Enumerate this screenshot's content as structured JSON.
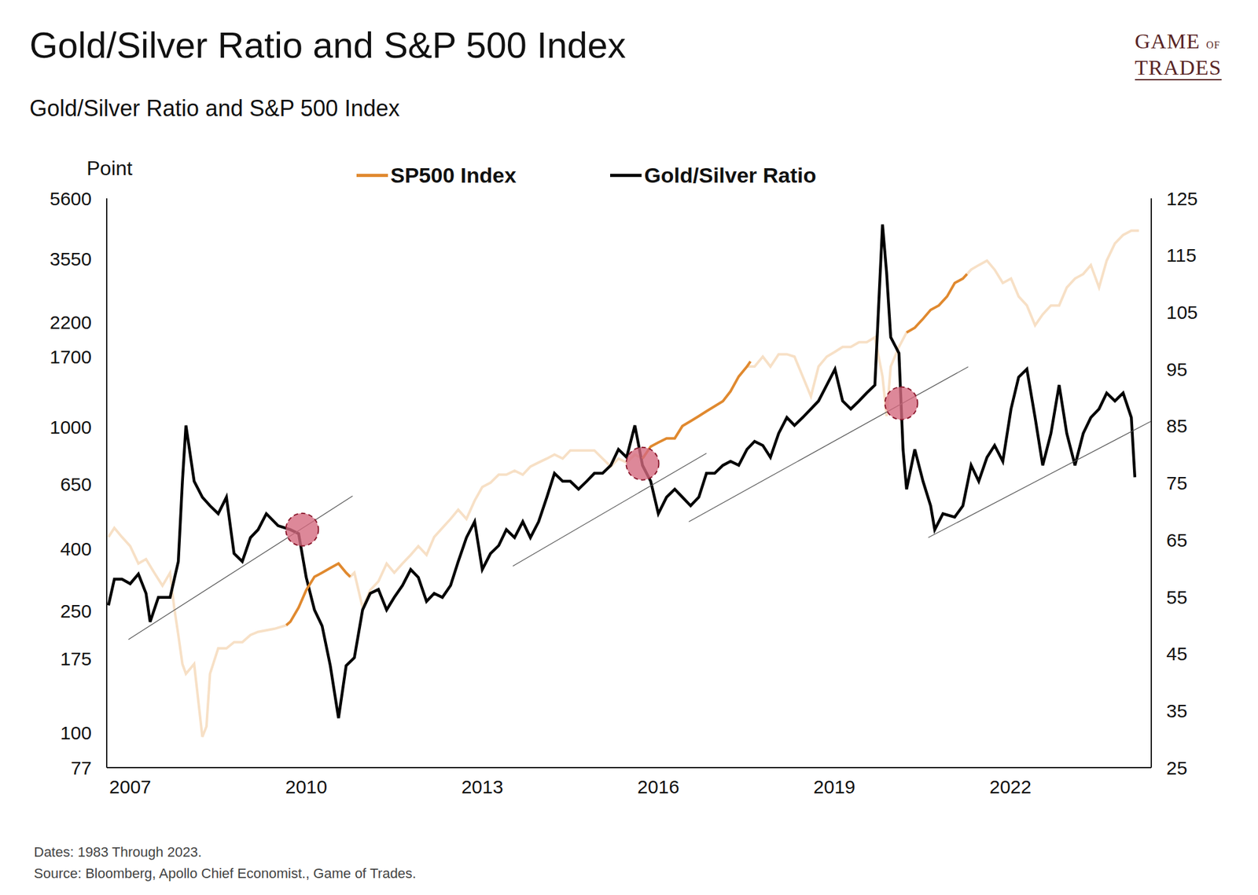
{
  "chart_data": {
    "type": "line",
    "title": "Gold/Silver Ratio and S&P 500 Index",
    "subtitle": "Gold/Silver Ratio and S&P 500 Index",
    "y_label": "Point",
    "logo": "GAME OF TRADES",
    "footnotes": [
      "Dates: 1983 Through 2023.",
      "Source: Bloomberg, Apollo Chief Economist., Game of Trades."
    ],
    "legend": "top",
    "grid": false,
    "log": "y",
    "xlim": [
      2006.6,
      2024.4
    ],
    "xticks": [
      2007,
      2010,
      2013,
      2016,
      2019,
      2022
    ],
    "ylim": [
      77,
      5600
    ],
    "yticks": [
      77,
      100,
      175,
      250,
      400,
      650,
      1000,
      1700,
      2200,
      3550,
      5600
    ],
    "y2lim": [
      25,
      125
    ],
    "y2ticks": [
      25,
      35,
      45,
      55,
      65,
      75,
      85,
      95,
      105,
      115,
      125
    ],
    "series": [
      {
        "name": "SP500 Index",
        "type": "line",
        "axis": "y",
        "color": "#f7e0c6",
        "x": [
          2006.63,
          2006.73,
          2006.86,
          2007.0,
          2007.14,
          2007.27,
          2007.41,
          2007.55,
          2007.68,
          2007.75,
          2007.82,
          2007.89,
          2007.95,
          2008.09,
          2008.23,
          2008.3,
          2008.36,
          2008.5,
          2008.64,
          2008.77,
          2008.91,
          2009.05,
          2009.18,
          2009.46,
          2009.66,
          2009.73,
          2009.87,
          2010.0,
          2010.14,
          2010.27,
          2010.41,
          2010.55,
          2010.68,
          2010.75,
          2010.82,
          2010.96,
          2011.09,
          2011.23,
          2011.37,
          2011.5,
          2011.64,
          2011.78,
          2011.91,
          2012.05,
          2012.18,
          2012.32,
          2012.46,
          2012.59,
          2012.73,
          2012.87,
          2013.0,
          2013.14,
          2013.28,
          2013.41,
          2013.55,
          2013.69,
          2013.82,
          2013.96,
          2014.1,
          2014.23,
          2014.37,
          2014.5,
          2014.64,
          2014.78,
          2014.91,
          2015.05,
          2015.19,
          2015.32,
          2015.46,
          2015.6,
          2015.73,
          2015.87,
          2016.0,
          2016.14,
          2016.28,
          2016.41,
          2016.55,
          2016.69,
          2016.82,
          2016.96,
          2017.1,
          2017.23,
          2017.37,
          2017.51,
          2017.64,
          2017.78,
          2017.91,
          2018.05,
          2018.19,
          2018.32,
          2018.46,
          2018.6,
          2018.73,
          2018.87,
          2019.01,
          2019.14,
          2019.28,
          2019.42,
          2019.55,
          2019.69,
          2019.82,
          2019.89,
          2019.96,
          2020.1,
          2020.23,
          2020.37,
          2020.51,
          2020.64,
          2020.78,
          2020.92,
          2021.05,
          2021.19,
          2021.33,
          2021.46,
          2021.6,
          2021.73,
          2021.87,
          2022.01,
          2022.14,
          2022.28,
          2022.42,
          2022.55,
          2022.69,
          2022.83,
          2022.96,
          2023.1,
          2023.24,
          2023.37,
          2023.51,
          2023.64,
          2023.78,
          2023.92,
          2024.06,
          2024.19
        ],
        "values": [
          437,
          468,
          437,
          408,
          358,
          370,
          334,
          303,
          334,
          257,
          209,
          168,
          156,
          168,
          97,
          105,
          156,
          189,
          189,
          198,
          198,
          209,
          214,
          219,
          225,
          231,
          257,
          293,
          324,
          334,
          346,
          358,
          334,
          324,
          334,
          257,
          293,
          313,
          358,
          334,
          358,
          382,
          408,
          382,
          437,
          468,
          501,
          537,
          501,
          575,
          637,
          658,
          699,
          699,
          720,
          699,
          743,
          766,
          789,
          813,
          789,
          839,
          839,
          839,
          839,
          789,
          743,
          789,
          766,
          813,
          789,
          864,
          891,
          919,
          919,
          1008,
          1046,
          1086,
          1127,
          1170,
          1215,
          1309,
          1464,
          1578,
          1578,
          1700,
          1578,
          1731,
          1731,
          1700,
          1464,
          1261,
          1578,
          1700,
          1763,
          1829,
          1829,
          1896,
          1896,
          1966,
          1464,
          1086,
          1578,
          1829,
          2039,
          2114,
          2260,
          2417,
          2500,
          2674,
          2960,
          3061,
          3274,
          3387,
          3503,
          3274,
          2960,
          3061,
          2674,
          2500,
          2152,
          2337,
          2500,
          2500,
          2861,
          3061,
          3166,
          3387,
          2861,
          3503,
          3986,
          4250,
          4390,
          4390
        ]
      },
      {
        "name": "Gold/Silver Ratio",
        "type": "line",
        "axis": "y2",
        "color": "#000000",
        "x": [
          2006.63,
          2006.73,
          2006.86,
          2007.0,
          2007.14,
          2007.27,
          2007.34,
          2007.48,
          2007.68,
          2007.82,
          2007.89,
          2007.95,
          2008.09,
          2008.23,
          2008.36,
          2008.5,
          2008.64,
          2008.77,
          2008.91,
          2009.05,
          2009.18,
          2009.32,
          2009.52,
          2009.73,
          2009.87,
          2010.0,
          2010.14,
          2010.27,
          2010.41,
          2010.55,
          2010.68,
          2010.82,
          2010.96,
          2011.09,
          2011.23,
          2011.37,
          2011.5,
          2011.64,
          2011.78,
          2011.91,
          2012.05,
          2012.18,
          2012.32,
          2012.46,
          2012.59,
          2012.73,
          2012.87,
          2013.0,
          2013.14,
          2013.28,
          2013.41,
          2013.55,
          2013.69,
          2013.82,
          2013.96,
          2014.1,
          2014.23,
          2014.37,
          2014.5,
          2014.64,
          2014.78,
          2014.91,
          2015.05,
          2015.19,
          2015.32,
          2015.46,
          2015.6,
          2015.73,
          2015.87,
          2016.0,
          2016.14,
          2016.28,
          2016.41,
          2016.55,
          2016.69,
          2016.82,
          2016.96,
          2017.1,
          2017.23,
          2017.37,
          2017.51,
          2017.64,
          2017.78,
          2017.91,
          2018.05,
          2018.19,
          2018.32,
          2018.46,
          2018.6,
          2018.73,
          2018.87,
          2019.01,
          2019.14,
          2019.28,
          2019.42,
          2019.55,
          2019.69,
          2019.82,
          2019.89,
          2019.96,
          2020.03,
          2020.1,
          2020.17,
          2020.23,
          2020.37,
          2020.51,
          2020.64,
          2020.71,
          2020.85,
          2021.05,
          2021.19,
          2021.33,
          2021.46,
          2021.6,
          2021.73,
          2021.87,
          2022.01,
          2022.14,
          2022.28,
          2022.42,
          2022.55,
          2022.69,
          2022.83,
          2022.96,
          2023.1,
          2023.24,
          2023.37,
          2023.51,
          2023.64,
          2023.78,
          2023.92,
          2024.06,
          2024.12
        ],
        "values": [
          53.5,
          58.1,
          58.1,
          57.3,
          59.0,
          55.6,
          50.6,
          54.9,
          54.9,
          61.2,
          75.3,
          85.1,
          75.3,
          72.5,
          71.0,
          69.6,
          72.5,
          62.6,
          61.2,
          65.4,
          66.8,
          69.6,
          67.5,
          66.8,
          66.1,
          58.4,
          52.7,
          49.9,
          42.9,
          33.7,
          42.9,
          44.3,
          52.7,
          55.6,
          56.3,
          52.7,
          54.9,
          57.0,
          59.8,
          58.4,
          54.2,
          55.6,
          54.9,
          57.0,
          61.2,
          65.4,
          68.2,
          59.8,
          62.6,
          64.0,
          66.8,
          65.4,
          68.2,
          65.4,
          68.2,
          72.5,
          76.7,
          75.3,
          75.3,
          73.9,
          75.3,
          76.7,
          76.7,
          78.1,
          80.9,
          79.5,
          85.1,
          78.1,
          75.3,
          69.6,
          72.5,
          73.9,
          72.5,
          71.0,
          72.5,
          76.7,
          76.7,
          78.1,
          78.8,
          78.1,
          80.9,
          82.3,
          81.6,
          79.5,
          83.7,
          86.5,
          85.1,
          86.5,
          88.0,
          89.4,
          92.2,
          95.0,
          89.4,
          88.0,
          89.4,
          90.8,
          92.2,
          120.4,
          111.9,
          100.6,
          99.2,
          97.8,
          80.9,
          73.9,
          80.9,
          75.3,
          71.0,
          66.8,
          69.6,
          69.0,
          71.0,
          78.1,
          75.3,
          79.5,
          81.6,
          78.8,
          88.0,
          93.6,
          95.0,
          86.5,
          78.1,
          83.7,
          92.2,
          83.7,
          78.1,
          83.7,
          86.5,
          88.0,
          90.8,
          89.4,
          90.8,
          86.5,
          76.0
        ]
      },
      {
        "name": "SP500 Index",
        "type": "line",
        "axis": "y",
        "color": "#e0892f",
        "x": [
          2009.66,
          2009.73,
          2009.87,
          2010.0,
          2010.14,
          2010.27,
          2010.41,
          2010.55,
          2010.68,
          2010.75,
          2013.0,
          2015.73,
          2015.87,
          2016.0,
          2016.14,
          2016.28,
          2016.41,
          2016.55,
          2016.69,
          2016.82,
          2016.96,
          2017.1,
          2017.23,
          2017.37,
          2017.51,
          2017.57,
          2019.0,
          2020.23,
          2020.37,
          2020.51,
          2020.64,
          2020.78,
          2020.92,
          2021.05,
          2021.19,
          2021.26
        ],
        "values": [
          225,
          231,
          257,
          293,
          324,
          334,
          346,
          358,
          334,
          324,
          null,
          789,
          864,
          891,
          919,
          919,
          1008,
          1046,
          1086,
          1127,
          1170,
          1215,
          1309,
          1464,
          1578,
          1639,
          null,
          2039,
          2114,
          2260,
          2417,
          2500,
          2674,
          2960,
          3061,
          3166
        ]
      }
    ],
    "trendlines": [
      {
        "axis": "y2",
        "x": [
          2006.97,
          2010.79
        ],
        "values": [
          47.5,
          72.7
        ]
      },
      {
        "axis": "y2",
        "x": [
          2013.52,
          2016.82
        ],
        "values": [
          60.4,
          80.2
        ]
      },
      {
        "axis": "y2",
        "x": [
          2016.52,
          2021.28
        ],
        "values": [
          68.2,
          95.4
        ]
      },
      {
        "axis": "y2",
        "x": [
          2020.6,
          2024.39
        ],
        "values": [
          65.4,
          85.8
        ]
      }
    ],
    "highlights": [
      {
        "axis": "y2",
        "x": 2009.93,
        "y": 66.8
      },
      {
        "axis": "y2",
        "x": 2015.73,
        "y": 78.4
      },
      {
        "axis": "y2",
        "x": 2020.14,
        "y": 89.0
      }
    ]
  }
}
